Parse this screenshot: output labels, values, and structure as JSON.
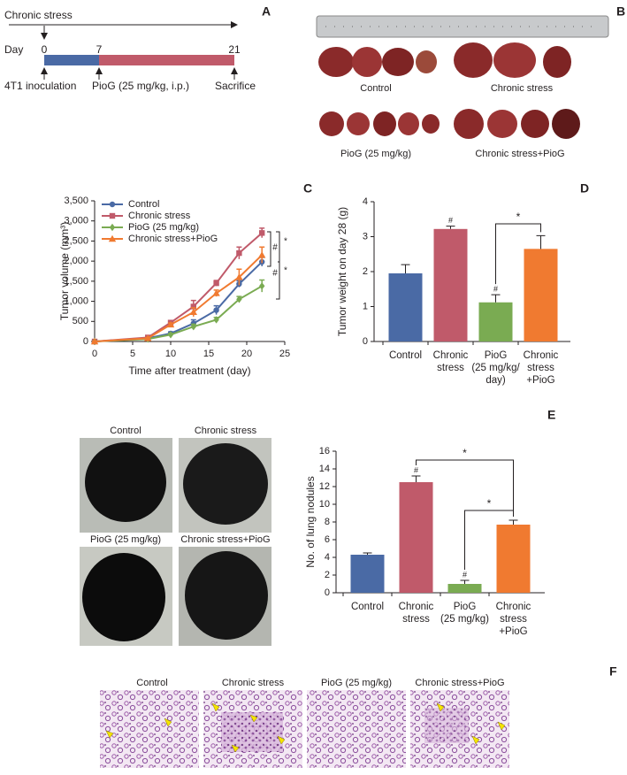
{
  "panel_labels": [
    "A",
    "B",
    "C",
    "D",
    "E",
    "F"
  ],
  "timeline": {
    "title": "Chronic stress",
    "day_label": "Day",
    "days": [
      "0",
      "7",
      "21"
    ],
    "events": [
      "4T1 inoculation",
      "PioG (25 mg/kg, i.p.)",
      "Sacrifice"
    ]
  },
  "tumor_photo_labels": [
    "Control",
    "Chronic stress",
    "PioG (25 mg/kg)",
    "Chronic stress+PioG"
  ],
  "lung_photo_labels": [
    "Control",
    "Chronic stress",
    "PioG (25 mg/kg)",
    "Chronic stress+PioG"
  ],
  "histology_labels": [
    "Control",
    "Chronic stress",
    "PioG (25 mg/kg)",
    "Chronic stress+PioG"
  ],
  "chart_data": [
    {
      "type": "line",
      "xlabel": "Time after treatment (day)",
      "ylabel": "Tumor volume (mm³)",
      "x": [
        0,
        7,
        10,
        13,
        16,
        19,
        22
      ],
      "xlim": [
        0,
        25
      ],
      "xticks": [
        0,
        5,
        10,
        15,
        20,
        25
      ],
      "ylim": [
        0,
        3500
      ],
      "yticks": [
        0,
        500,
        {
          "value": 1000,
          "label": "1,000"
        },
        {
          "value": 1500,
          "label": "1,500"
        },
        {
          "value": 2000,
          "label": "2,000"
        },
        {
          "value": 2500,
          "label": "2,500"
        },
        {
          "value": 3000,
          "label": "3,000"
        },
        {
          "value": 3500,
          "label": "3,500"
        }
      ],
      "series": [
        {
          "name": "Control",
          "color": "#4a6aa5",
          "marker": "circle",
          "values": [
            0,
            80,
            200,
            450,
            780,
            1430,
            1980
          ],
          "errors": [
            0,
            20,
            40,
            90,
            110,
            80,
            110
          ]
        },
        {
          "name": "Chronic stress",
          "color": "#c05a6a",
          "marker": "square",
          "values": [
            0,
            100,
            470,
            870,
            1450,
            2200,
            2700
          ],
          "errors": [
            0,
            20,
            40,
            150,
            70,
            150,
            120
          ]
        },
        {
          "name": "PioG (25 mg/kg)",
          "color": "#7aab52",
          "marker": "diamond",
          "values": [
            0,
            60,
            170,
            370,
            540,
            1050,
            1380
          ],
          "errors": [
            0,
            15,
            30,
            60,
            60,
            70,
            150
          ]
        },
        {
          "name": "Chronic stress+PioG",
          "color": "#f07a30",
          "marker": "triangle",
          "values": [
            0,
            80,
            420,
            730,
            1200,
            1600,
            2150
          ],
          "errors": [
            0,
            20,
            40,
            110,
            80,
            200,
            200
          ]
        }
      ],
      "annotations": [
        "#",
        "*",
        "#",
        "*"
      ]
    },
    {
      "type": "bar",
      "ylabel": "Tumor weight on day 28 (g)",
      "categories": [
        [
          "Control"
        ],
        [
          "Chronic",
          "stress"
        ],
        [
          "PioG",
          "(25 mg/kg/",
          "day)"
        ],
        [
          "Chronic",
          "stress",
          "+PioG"
        ]
      ],
      "values": [
        1.95,
        3.22,
        1.12,
        2.65
      ],
      "errors": [
        0.25,
        0.08,
        0.22,
        0.38
      ],
      "colors": [
        "#4a6aa5",
        "#c05a6a",
        "#7aab52",
        "#f07a30"
      ],
      "ylim": [
        0,
        4
      ],
      "yticks": [
        0,
        1,
        2,
        3,
        4
      ],
      "annotations": [
        "#",
        "#",
        "*"
      ]
    },
    {
      "type": "bar",
      "ylabel": "No. of lung nodules",
      "categories": [
        [
          "Control"
        ],
        [
          "Chronic",
          "stress"
        ],
        [
          "PioG",
          "(25 mg/kg)"
        ],
        [
          "Chronic",
          "stress",
          "+PioG"
        ]
      ],
      "values": [
        4.3,
        12.5,
        1.0,
        7.7
      ],
      "errors": [
        0.2,
        0.7,
        0.4,
        0.5
      ],
      "colors": [
        "#4a6aa5",
        "#c05a6a",
        "#7aab52",
        "#f07a30"
      ],
      "ylim": [
        0,
        16
      ],
      "yticks": [
        0,
        2,
        4,
        6,
        8,
        10,
        12,
        14,
        16
      ],
      "annotations": [
        "#",
        "*",
        "#",
        "*"
      ]
    }
  ]
}
